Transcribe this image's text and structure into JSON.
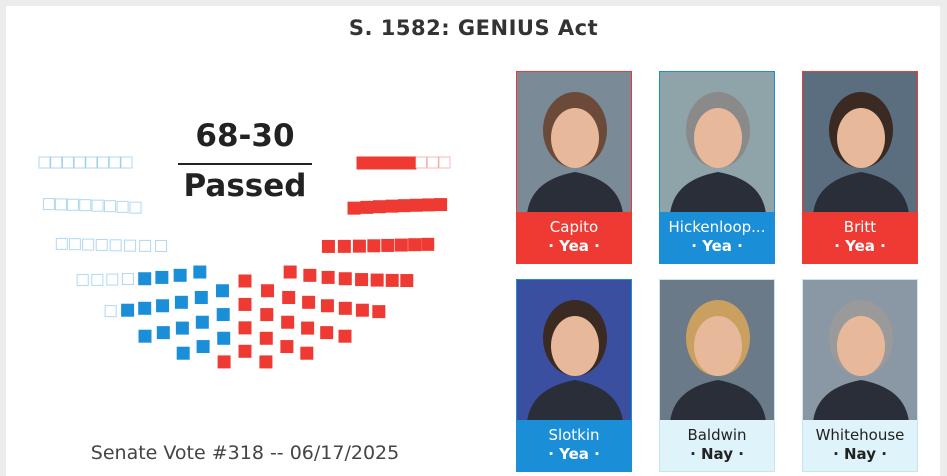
{
  "title": "S. 1582: GENIUS Act",
  "result": {
    "score": "68-30",
    "status": "Passed"
  },
  "footer": "Senate Vote #318 -- 06/17/2025",
  "hemicycle": {
    "groups": [
      {
        "color": "#1a8fd8",
        "filled": false,
        "count": 29
      },
      {
        "color": "#1a8fd8",
        "filled": true,
        "count": 18
      },
      {
        "color": "#ee3a33",
        "filled": true,
        "count": 50
      },
      {
        "color": "#ee3a33",
        "filled": false,
        "count": 3
      }
    ]
  },
  "senators": [
    {
      "name": "Capito",
      "vote": "· Yea ·",
      "color": "#ee3a33",
      "text_color": "#ffffff"
    },
    {
      "name": "Hickenloop...",
      "vote": "· Yea ·",
      "color": "#1a8fd8",
      "text_color": "#ffffff"
    },
    {
      "name": "Britt",
      "vote": "· Yea ·",
      "color": "#ee3a33",
      "text_color": "#ffffff"
    },
    {
      "name": "Slotkin",
      "vote": "· Yea ·",
      "color": "#1a8fd8",
      "text_color": "#ffffff"
    },
    {
      "name": "Baldwin",
      "vote": "· Nay ·",
      "color": "#dff3fa",
      "text_color": "#222222"
    },
    {
      "name": "Whitehouse",
      "vote": "· Nay ·",
      "color": "#dff3fa",
      "text_color": "#222222"
    }
  ]
}
